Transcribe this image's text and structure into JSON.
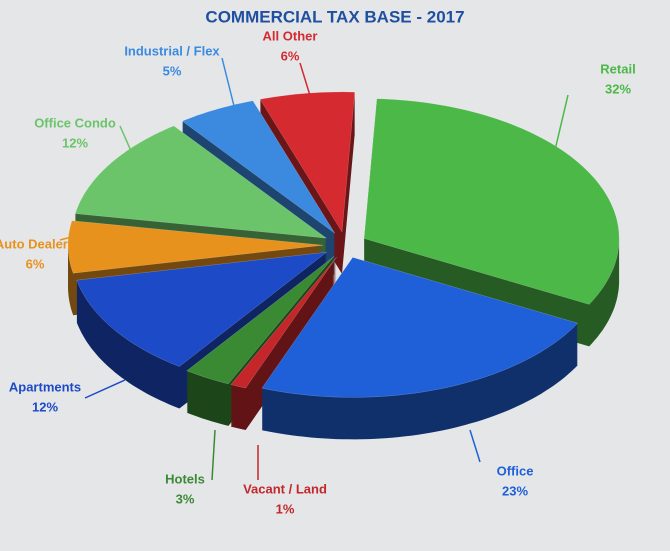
{
  "chart_data": {
    "type": "pie",
    "title": "COMMERCIAL TAX BASE - 2017",
    "categories": [
      "Retail",
      "Office",
      "Vacant / Land",
      "Hotels",
      "Apartments",
      "Auto Dealers",
      "Office Condo",
      "Industrial / Flex",
      "All Other"
    ],
    "values": [
      32,
      23,
      1,
      3,
      12,
      6,
      12,
      5,
      6
    ],
    "value_labels": [
      "32%",
      "23%",
      "1%",
      "3%",
      "12%",
      "6%",
      "12%",
      "5%",
      "6%"
    ],
    "colors": [
      "#4cb848",
      "#1f60d8",
      "#c4262a",
      "#3a8a34",
      "#1d4ac6",
      "#e8921e",
      "#6cc46a",
      "#3c8ae0",
      "#d42a30"
    ]
  }
}
